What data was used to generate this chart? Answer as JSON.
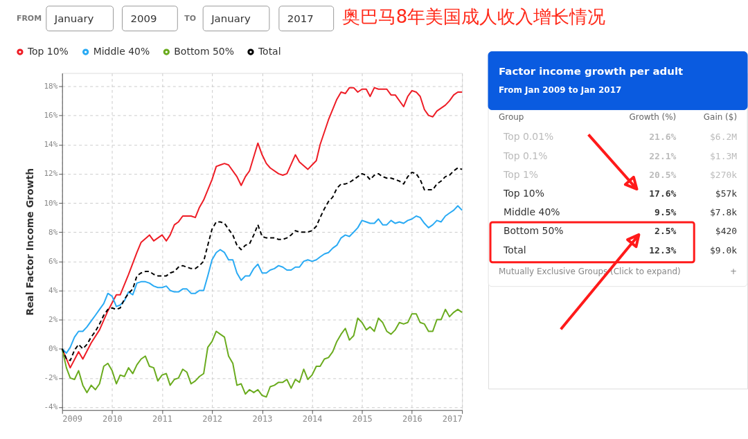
{
  "chart_data": [
    {
      "type": "line",
      "title": "奥巴马8年美国成人收入增长情况",
      "ylabel": "Real Factor Income Growth",
      "annotations": [
        "FROM",
        "January",
        "2009",
        "TO",
        "January",
        "2017"
      ],
      "x": [
        "2009-01",
        "2009-02",
        "2009-03",
        "2009-04",
        "2009-05",
        "2009-06",
        "2009-07",
        "2009-08",
        "2009-09",
        "2009-10",
        "2009-11",
        "2009-12",
        "2010-01",
        "2010-02",
        "2010-03",
        "2010-04",
        "2010-05",
        "2010-06",
        "2010-07",
        "2010-08",
        "2010-09",
        "2010-10",
        "2010-11",
        "2010-12",
        "2011-01",
        "2011-02",
        "2011-03",
        "2011-04",
        "2011-05",
        "2011-06",
        "2011-07",
        "2011-08",
        "2011-09",
        "2011-10",
        "2011-11",
        "2011-12",
        "2012-01",
        "2012-02",
        "2012-03",
        "2012-04",
        "2012-05",
        "2012-06",
        "2012-07",
        "2012-08",
        "2012-09",
        "2012-10",
        "2012-11",
        "2012-12",
        "2013-01",
        "2013-02",
        "2013-03",
        "2013-04",
        "2013-05",
        "2013-06",
        "2013-07",
        "2013-08",
        "2013-09",
        "2013-10",
        "2013-11",
        "2013-12",
        "2014-01",
        "2014-02",
        "2014-03",
        "2014-04",
        "2014-05",
        "2014-06",
        "2014-07",
        "2014-08",
        "2014-09",
        "2014-10",
        "2014-11",
        "2014-12",
        "2015-01",
        "2015-02",
        "2015-03",
        "2015-04",
        "2015-05",
        "2015-06",
        "2015-07",
        "2015-08",
        "2015-09",
        "2015-10",
        "2015-11",
        "2015-12",
        "2016-01",
        "2016-02",
        "2016-03",
        "2016-04",
        "2016-05",
        "2016-06",
        "2016-07",
        "2016-08",
        "2016-09",
        "2016-10",
        "2016-11",
        "2016-12",
        "2017-01"
      ],
      "series": [
        {
          "name": "Top 10%",
          "color": "#ee1c25",
          "line_style": "solid",
          "x": [
            "2009-01",
            "2009-03",
            "2009-05",
            "2009-06",
            "2009-08",
            "2009-10",
            "2009-12",
            "2010-02",
            "2010-03",
            "2010-05",
            "2010-07",
            "2010-08",
            "2010-10",
            "2010-11",
            "2011-01",
            "2011-02",
            "2011-03",
            "2011-04",
            "2011-05",
            "2011-06",
            "2011-08",
            "2011-09",
            "2011-10",
            "2011-11",
            "2012-01",
            "2012-02",
            "2012-03",
            "2012-04",
            "2012-05",
            "2012-07",
            "2012-08",
            "2012-09",
            "2012-10",
            "2012-12",
            "2013-01",
            "2013-02",
            "2013-03",
            "2013-05",
            "2013-06",
            "2013-07",
            "2013-09",
            "2013-10",
            "2013-12",
            "2014-01",
            "2014-02",
            "2014-03",
            "2014-05",
            "2014-07",
            "2014-08",
            "2014-09",
            "2014-10",
            "2014-11",
            "2014-12",
            "2015-01",
            "2015-02",
            "2015-03",
            "2015-04",
            "2015-05",
            "2015-06",
            "2015-07",
            "2015-08",
            "2015-09",
            "2015-11",
            "2015-12",
            "2016-01",
            "2016-02",
            "2016-03",
            "2016-04",
            "2016-05",
            "2016-06",
            "2016-07",
            "2016-09",
            "2016-10",
            "2016-11",
            "2016-12",
            "2017-01"
          ],
          "values": [
            0,
            -1.3,
            -0.2,
            -0.7,
            0.4,
            1.3,
            2.6,
            3.7,
            3.7,
            5.1,
            6.6,
            7.3,
            7.8,
            7.4,
            7.8,
            7.4,
            7.8,
            8.5,
            8.7,
            9.1,
            9.1,
            9.0,
            9.7,
            10.2,
            11.6,
            12.5,
            12.6,
            12.7,
            12.6,
            11.8,
            11.2,
            11.8,
            12.2,
            14.1,
            13.3,
            12.7,
            12.4,
            12.0,
            11.9,
            12.0,
            13.3,
            12.8,
            12.3,
            12.6,
            12.9,
            14.0,
            15.7,
            17.1,
            17.6,
            17.5,
            17.9,
            17.9,
            17.6,
            17.8,
            17.8,
            17.3,
            17.9,
            17.8,
            17.8,
            17.8,
            17.4,
            17.4,
            16.6,
            17.3,
            17.7,
            17.6,
            17.3,
            16.4,
            16.0,
            15.9,
            16.3,
            16.7,
            17.0,
            17.4,
            17.6,
            17.6
          ]
        },
        {
          "name": "Middle 40%",
          "color": "#29aaf4",
          "line_style": "solid",
          "values": [
            0,
            -0.3,
            0.1,
            0.8,
            1.2,
            1.2,
            1.5,
            1.9,
            2.3,
            2.7,
            3.1,
            3.8,
            3.6,
            2.9,
            3.0,
            3.3,
            3.9,
            3.7,
            4.5,
            4.6,
            4.6,
            4.5,
            4.3,
            4.2,
            4.2,
            4.3,
            4.0,
            3.9,
            3.9,
            4.1,
            4.1,
            3.8,
            3.8,
            4.0,
            4.0,
            5.0,
            6.1,
            6.6,
            6.8,
            6.6,
            6.1,
            6.1,
            5.2,
            4.7,
            5.0,
            5.0,
            5.5,
            5.8,
            5.2,
            5.2,
            5.4,
            5.5,
            5.7,
            5.6,
            5.4,
            5.4,
            5.6,
            5.6,
            6.0,
            6.1,
            6.0,
            6.1,
            6.3,
            6.5,
            6.6,
            6.9,
            7.1,
            7.6,
            7.8,
            7.7,
            8.0,
            8.3,
            8.8,
            8.7,
            8.6,
            8.6,
            8.9,
            8.5,
            8.5,
            8.8,
            8.6,
            8.7,
            8.6,
            8.8,
            8.9,
            9.1,
            9.0,
            8.6,
            8.3,
            8.5,
            8.8,
            8.7,
            9.1,
            9.3,
            9.5,
            9.8,
            9.5
          ]
        },
        {
          "name": "Bottom 50%",
          "color": "#6aab1e",
          "line_style": "solid",
          "values": [
            0,
            -1.3,
            -2.0,
            -2.1,
            -1.5,
            -2.5,
            -3.0,
            -2.5,
            -2.8,
            -2.4,
            -1.2,
            -1.0,
            -1.5,
            -2.4,
            -1.8,
            -1.9,
            -1.3,
            -1.7,
            -1.1,
            -0.7,
            -0.5,
            -1.2,
            -1.3,
            -2.2,
            -1.8,
            -1.7,
            -2.5,
            -2.1,
            -2.0,
            -1.4,
            -1.6,
            -2.4,
            -2.2,
            -1.9,
            -1.7,
            0.1,
            0.5,
            1.2,
            1.0,
            0.8,
            -0.5,
            -1.0,
            -2.5,
            -2.4,
            -3.1,
            -2.8,
            -3.0,
            -2.8,
            -3.2,
            -3.3,
            -2.6,
            -2.5,
            -2.3,
            -2.3,
            -2.1,
            -2.7,
            -2.1,
            -2.3,
            -1.4,
            -2.1,
            -1.8,
            -1.2,
            -1.2,
            -0.7,
            -0.6,
            -0.2,
            0.5,
            1.0,
            1.4,
            0.6,
            0.9,
            2.1,
            1.8,
            1.3,
            1.5,
            1.2,
            2.1,
            1.8,
            1.2,
            1.0,
            1.3,
            1.8,
            1.7,
            1.8,
            2.4,
            2.4,
            1.8,
            1.7,
            1.2,
            1.2,
            2.0,
            2.0,
            2.7,
            2.2,
            2.5,
            2.7,
            2.5
          ]
        },
        {
          "name": "Total",
          "color": "#000000",
          "line_style": "dashed",
          "values": [
            0,
            -0.7,
            -0.8,
            -0.1,
            0.3,
            0,
            0.3,
            0.8,
            1.2,
            1.7,
            2.3,
            2.7,
            2.8,
            2.7,
            2.8,
            3.4,
            3.8,
            4.1,
            5.0,
            5.2,
            5.3,
            5.3,
            5.1,
            5.0,
            5.0,
            5.0,
            5.2,
            5.3,
            5.6,
            5.7,
            5.6,
            5.5,
            5.5,
            5.7,
            6.0,
            7.1,
            8.2,
            8.7,
            8.7,
            8.6,
            8.2,
            7.8,
            7.1,
            6.8,
            7.1,
            7.2,
            7.8,
            8.5,
            7.7,
            7.6,
            7.6,
            7.6,
            7.5,
            7.5,
            7.6,
            7.8,
            8.1,
            8.0,
            8.0,
            8.0,
            8.1,
            8.4,
            9.0,
            9.6,
            10.1,
            10.4,
            11.0,
            11.3,
            11.3,
            11.4,
            11.6,
            11.8,
            12.0,
            11.9,
            11.6,
            11.9,
            12.0,
            11.8,
            11.7,
            11.7,
            11.6,
            11.5,
            11.3,
            11.8,
            12.1,
            12.0,
            11.6,
            10.9,
            10.9,
            10.9,
            11.3,
            11.5,
            11.8,
            11.9,
            12.2,
            12.4,
            12.3
          ]
        }
      ],
      "xlim": [
        "2009",
        "2017"
      ],
      "xticks": [
        "2009",
        "2010",
        "2011",
        "2012",
        "2013",
        "2014",
        "2015",
        "2016",
        "2017"
      ],
      "ylim": [
        -4.2,
        18.9
      ],
      "yticks": [
        {
          "value": -4,
          "label": "-4%"
        },
        {
          "value": -2,
          "label": "-2%"
        },
        {
          "value": 0,
          "label": "0%"
        },
        {
          "value": 2,
          "label": "2%"
        },
        {
          "value": 4,
          "label": "4%"
        },
        {
          "value": 6,
          "label": "6%"
        },
        {
          "value": 8,
          "label": "8%"
        },
        {
          "value": 10,
          "label": "10%"
        },
        {
          "value": 12,
          "label": "12%"
        },
        {
          "value": 14,
          "label": "14%"
        },
        {
          "value": 16,
          "label": "16%"
        },
        {
          "value": 18,
          "label": "18%"
        }
      ],
      "grid": true,
      "legend": "top left",
      "marker": "none"
    },
    {
      "type": "other",
      "title": "Factor income growth per adult",
      "subtitle": "From Jan 2009 to Jan 2017",
      "annotations": [
        "Group",
        "Growth (%)",
        "Gain ($)",
        "Top 0.01%",
        "21.6%",
        "$6.2M",
        "Top 0.1%",
        "22.1%",
        "$1.3M",
        "Top 1%",
        "20.5%",
        "$270k",
        "Top 10%",
        "17.6%",
        "$57k",
        "Middle 40%",
        "9.5%",
        "$7.8k",
        "Bottom 50%",
        "2.5%",
        "$420",
        "Total",
        "12.3%",
        "$9.0k",
        "Mutually Exclusive Groups (Click to expand)",
        "+"
      ]
    }
  ]
}
